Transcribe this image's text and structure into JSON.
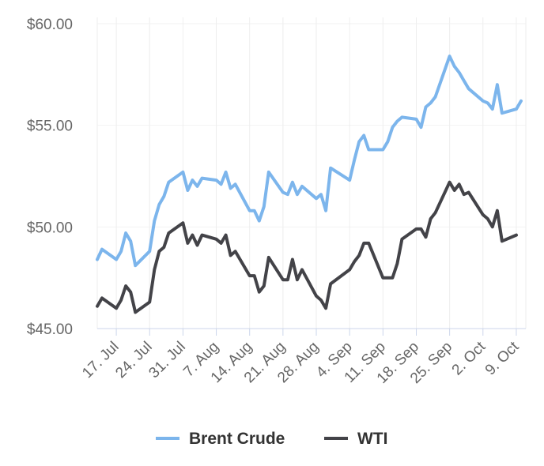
{
  "chart_data": {
    "type": "line",
    "title": "",
    "xlabel": "",
    "ylabel": "",
    "ylim": [
      45,
      60
    ],
    "xlim": [
      "2017-07-13",
      "2017-10-11"
    ],
    "y_ticks": [
      "$45.00",
      "$50.00",
      "$55.00",
      "$60.00"
    ],
    "x_ticks": [
      {
        "date": "2017-07-17",
        "label": "17. Jul"
      },
      {
        "date": "2017-07-24",
        "label": "24. Jul"
      },
      {
        "date": "2017-07-31",
        "label": "31. Jul"
      },
      {
        "date": "2017-08-07",
        "label": "7. Aug"
      },
      {
        "date": "2017-08-14",
        "label": "14. Aug"
      },
      {
        "date": "2017-08-21",
        "label": "21. Aug"
      },
      {
        "date": "2017-08-28",
        "label": "28. Aug"
      },
      {
        "date": "2017-09-04",
        "label": "4. Sep"
      },
      {
        "date": "2017-09-11",
        "label": "11. Sep"
      },
      {
        "date": "2017-09-18",
        "label": "18. Sep"
      },
      {
        "date": "2017-09-25",
        "label": "25. Sep"
      },
      {
        "date": "2017-10-02",
        "label": "2. Oct"
      },
      {
        "date": "2017-10-09",
        "label": "9. Oct"
      }
    ],
    "grid": "vertical",
    "legend": "bottom-center",
    "series": [
      {
        "name": "Brent Crude",
        "color": "#7cb5ec",
        "points": [
          [
            "2017-07-13",
            48.4
          ],
          [
            "2017-07-14",
            48.9
          ],
          [
            "2017-07-17",
            48.4
          ],
          [
            "2017-07-18",
            48.8
          ],
          [
            "2017-07-19",
            49.7
          ],
          [
            "2017-07-20",
            49.3
          ],
          [
            "2017-07-21",
            48.1
          ],
          [
            "2017-07-24",
            48.8
          ],
          [
            "2017-07-25",
            50.3
          ],
          [
            "2017-07-26",
            51.1
          ],
          [
            "2017-07-27",
            51.5
          ],
          [
            "2017-07-28",
            52.2
          ],
          [
            "2017-07-31",
            52.7
          ],
          [
            "2017-08-01",
            51.8
          ],
          [
            "2017-08-02",
            52.3
          ],
          [
            "2017-08-03",
            52.0
          ],
          [
            "2017-08-04",
            52.4
          ],
          [
            "2017-08-07",
            52.3
          ],
          [
            "2017-08-08",
            52.1
          ],
          [
            "2017-08-09",
            52.7
          ],
          [
            "2017-08-10",
            51.9
          ],
          [
            "2017-08-11",
            52.1
          ],
          [
            "2017-08-14",
            50.8
          ],
          [
            "2017-08-15",
            50.8
          ],
          [
            "2017-08-16",
            50.3
          ],
          [
            "2017-08-17",
            51.0
          ],
          [
            "2017-08-18",
            52.7
          ],
          [
            "2017-08-21",
            51.7
          ],
          [
            "2017-08-22",
            51.6
          ],
          [
            "2017-08-23",
            52.2
          ],
          [
            "2017-08-24",
            51.6
          ],
          [
            "2017-08-25",
            52.0
          ],
          [
            "2017-08-28",
            51.4
          ],
          [
            "2017-08-29",
            51.6
          ],
          [
            "2017-08-30",
            50.8
          ],
          [
            "2017-08-31",
            52.9
          ],
          [
            "2017-09-04",
            52.3
          ],
          [
            "2017-09-05",
            53.3
          ],
          [
            "2017-09-06",
            54.2
          ],
          [
            "2017-09-07",
            54.5
          ],
          [
            "2017-09-08",
            53.8
          ],
          [
            "2017-09-11",
            53.8
          ],
          [
            "2017-09-12",
            54.2
          ],
          [
            "2017-09-13",
            54.9
          ],
          [
            "2017-09-14",
            55.2
          ],
          [
            "2017-09-15",
            55.4
          ],
          [
            "2017-09-18",
            55.3
          ],
          [
            "2017-09-19",
            54.9
          ],
          [
            "2017-09-20",
            55.9
          ],
          [
            "2017-09-21",
            56.1
          ],
          [
            "2017-09-22",
            56.4
          ],
          [
            "2017-09-25",
            58.4
          ],
          [
            "2017-09-26",
            57.9
          ],
          [
            "2017-09-27",
            57.6
          ],
          [
            "2017-09-28",
            57.2
          ],
          [
            "2017-09-29",
            56.8
          ],
          [
            "2017-10-02",
            56.2
          ],
          [
            "2017-10-03",
            56.1
          ],
          [
            "2017-10-04",
            55.8
          ],
          [
            "2017-10-05",
            57.0
          ],
          [
            "2017-10-06",
            55.6
          ],
          [
            "2017-10-09",
            55.8
          ],
          [
            "2017-10-10",
            56.2
          ]
        ]
      },
      {
        "name": "WTI",
        "color": "#434348",
        "points": [
          [
            "2017-07-13",
            46.1
          ],
          [
            "2017-07-14",
            46.5
          ],
          [
            "2017-07-17",
            46.0
          ],
          [
            "2017-07-18",
            46.4
          ],
          [
            "2017-07-19",
            47.1
          ],
          [
            "2017-07-20",
            46.8
          ],
          [
            "2017-07-21",
            45.8
          ],
          [
            "2017-07-24",
            46.3
          ],
          [
            "2017-07-25",
            47.9
          ],
          [
            "2017-07-26",
            48.8
          ],
          [
            "2017-07-27",
            49.0
          ],
          [
            "2017-07-28",
            49.7
          ],
          [
            "2017-07-31",
            50.2
          ],
          [
            "2017-08-01",
            49.2
          ],
          [
            "2017-08-02",
            49.6
          ],
          [
            "2017-08-03",
            49.1
          ],
          [
            "2017-08-04",
            49.6
          ],
          [
            "2017-08-07",
            49.4
          ],
          [
            "2017-08-08",
            49.2
          ],
          [
            "2017-08-09",
            49.6
          ],
          [
            "2017-08-10",
            48.6
          ],
          [
            "2017-08-11",
            48.8
          ],
          [
            "2017-08-14",
            47.6
          ],
          [
            "2017-08-15",
            47.6
          ],
          [
            "2017-08-16",
            46.8
          ],
          [
            "2017-08-17",
            47.1
          ],
          [
            "2017-08-18",
            48.5
          ],
          [
            "2017-08-21",
            47.4
          ],
          [
            "2017-08-22",
            47.4
          ],
          [
            "2017-08-23",
            48.4
          ],
          [
            "2017-08-24",
            47.4
          ],
          [
            "2017-08-25",
            47.9
          ],
          [
            "2017-08-28",
            46.6
          ],
          [
            "2017-08-29",
            46.4
          ],
          [
            "2017-08-30",
            46.0
          ],
          [
            "2017-08-31",
            47.2
          ],
          [
            "2017-09-04",
            47.9
          ],
          [
            "2017-09-05",
            48.3
          ],
          [
            "2017-09-06",
            48.6
          ],
          [
            "2017-09-07",
            49.2
          ],
          [
            "2017-09-08",
            49.2
          ],
          [
            "2017-09-11",
            47.5
          ],
          [
            "2017-09-12",
            47.5
          ],
          [
            "2017-09-13",
            47.5
          ],
          [
            "2017-09-14",
            48.2
          ],
          [
            "2017-09-15",
            49.4
          ],
          [
            "2017-09-18",
            49.9
          ],
          [
            "2017-09-19",
            49.9
          ],
          [
            "2017-09-20",
            49.5
          ],
          [
            "2017-09-21",
            50.4
          ],
          [
            "2017-09-22",
            50.7
          ],
          [
            "2017-09-25",
            52.2
          ],
          [
            "2017-09-26",
            51.8
          ],
          [
            "2017-09-27",
            52.1
          ],
          [
            "2017-09-28",
            51.6
          ],
          [
            "2017-09-29",
            51.7
          ],
          [
            "2017-10-02",
            50.6
          ],
          [
            "2017-10-03",
            50.4
          ],
          [
            "2017-10-04",
            50.0
          ],
          [
            "2017-10-05",
            50.8
          ],
          [
            "2017-10-06",
            49.3
          ],
          [
            "2017-10-09",
            49.6
          ]
        ]
      }
    ]
  }
}
